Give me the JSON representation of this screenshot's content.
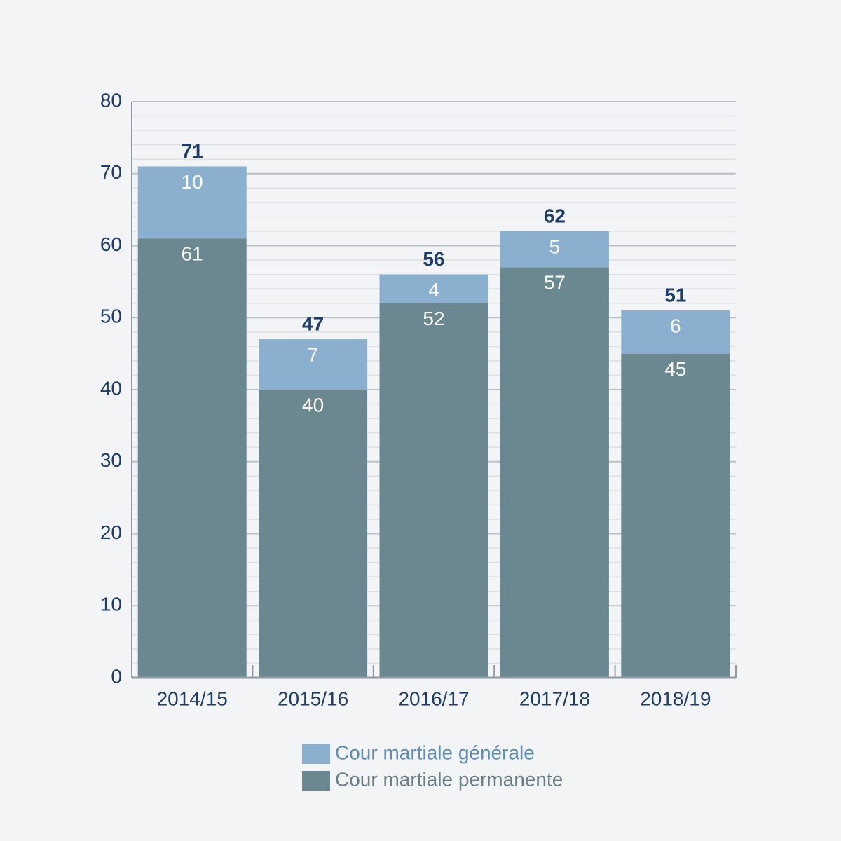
{
  "chart_data": {
    "type": "stacked_bar",
    "categories": [
      "2014/15",
      "2015/16",
      "2016/17",
      "2017/18",
      "2018/19"
    ],
    "series": [
      {
        "name": "Cour martiale permanente",
        "color": "#6b8890",
        "values": [
          61,
          40,
          52,
          57,
          45
        ]
      },
      {
        "name": "Cour martiale générale",
        "color": "#8aafcf",
        "values": [
          10,
          7,
          4,
          5,
          6
        ]
      }
    ],
    "totals": [
      71,
      47,
      56,
      62,
      51
    ],
    "ylim": [
      0,
      80
    ],
    "yticks": [
      0,
      10,
      20,
      30,
      40,
      50,
      60,
      70,
      80
    ],
    "yminorticks": [
      2,
      4,
      6,
      8,
      12,
      14,
      16,
      18,
      22,
      24,
      26,
      28,
      32,
      34,
      36,
      38,
      42,
      44,
      46,
      48,
      52,
      54,
      56,
      58,
      62,
      64,
      66,
      68,
      72,
      74,
      76,
      78
    ],
    "grid": true
  }
}
